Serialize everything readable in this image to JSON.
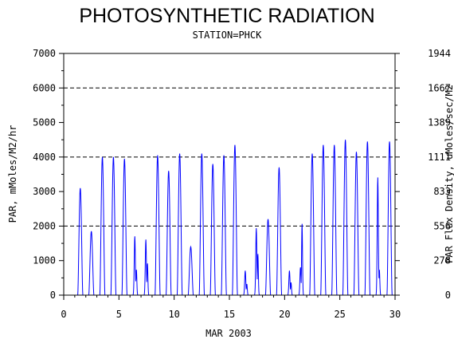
{
  "chart_data": {
    "type": "line",
    "title": "PHOTOSYNTHETIC RADIATION",
    "subtitle": "STATION=PHCK",
    "xlabel": "MAR 2003",
    "ylabel": "PAR, mMoles/M2/hr",
    "y2label": "PAR Flux Density, uMoles/sec/M2",
    "xlim": [
      0,
      30
    ],
    "ylim": [
      0,
      7000
    ],
    "y2lim": [
      0,
      1944
    ],
    "x_ticks": [
      "0",
      "5",
      "10",
      "15",
      "20",
      "25",
      "30"
    ],
    "y_ticks": [
      "0",
      "1000",
      "2000",
      "3000",
      "4000",
      "5000",
      "6000",
      "7000"
    ],
    "y2_ticks": [
      "0",
      "278",
      "556",
      "833",
      "1111",
      "1389",
      "1667",
      "1944"
    ],
    "grid": "dashed horizontal lines at 2000, 4000 and 6000",
    "line_color": "#0000ff",
    "series": [
      {
        "daily_peaks": [
          {
            "day": 1,
            "peaks": [
              3100
            ]
          },
          {
            "day": 2,
            "peaks": [
              1850
            ]
          },
          {
            "day": 3,
            "peaks": [
              4000
            ]
          },
          {
            "day": 4,
            "peaks": [
              4000
            ]
          },
          {
            "day": 5,
            "peaks": [
              3950
            ]
          },
          {
            "day": 6,
            "peaks": [
              1800,
              800
            ]
          },
          {
            "day": 7,
            "peaks": [
              1700,
              1000
            ]
          },
          {
            "day": 8,
            "peaks": [
              4050
            ]
          },
          {
            "day": 9,
            "peaks": [
              3600
            ]
          },
          {
            "day": 10,
            "peaks": [
              4100
            ]
          },
          {
            "day": 11,
            "peaks": [
              1400
            ]
          },
          {
            "day": 12,
            "peaks": [
              4100
            ]
          },
          {
            "day": 13,
            "peaks": [
              3800
            ]
          },
          {
            "day": 14,
            "peaks": [
              4050
            ]
          },
          {
            "day": 15,
            "peaks": [
              4350
            ]
          },
          {
            "day": 16,
            "peaks": [
              750,
              350
            ]
          },
          {
            "day": 17,
            "peaks": [
              2050,
              1300
            ]
          },
          {
            "day": 18,
            "peaks": [
              2200
            ]
          },
          {
            "day": 19,
            "peaks": [
              3700
            ]
          },
          {
            "day": 20,
            "peaks": [
              750,
              400
            ]
          },
          {
            "day": 21,
            "peaks": [
              850,
              2250
            ]
          },
          {
            "day": 22,
            "peaks": [
              4100
            ]
          },
          {
            "day": 23,
            "peaks": [
              4350
            ]
          },
          {
            "day": 24,
            "peaks": [
              4350
            ]
          },
          {
            "day": 25,
            "peaks": [
              4500
            ]
          },
          {
            "day": 26,
            "peaks": [
              4150
            ]
          },
          {
            "day": 27,
            "peaks": [
              4450
            ]
          },
          {
            "day": 28,
            "peaks": [
              3600,
              800
            ]
          },
          {
            "day": 29,
            "peaks": [
              4450
            ]
          }
        ]
      }
    ]
  }
}
